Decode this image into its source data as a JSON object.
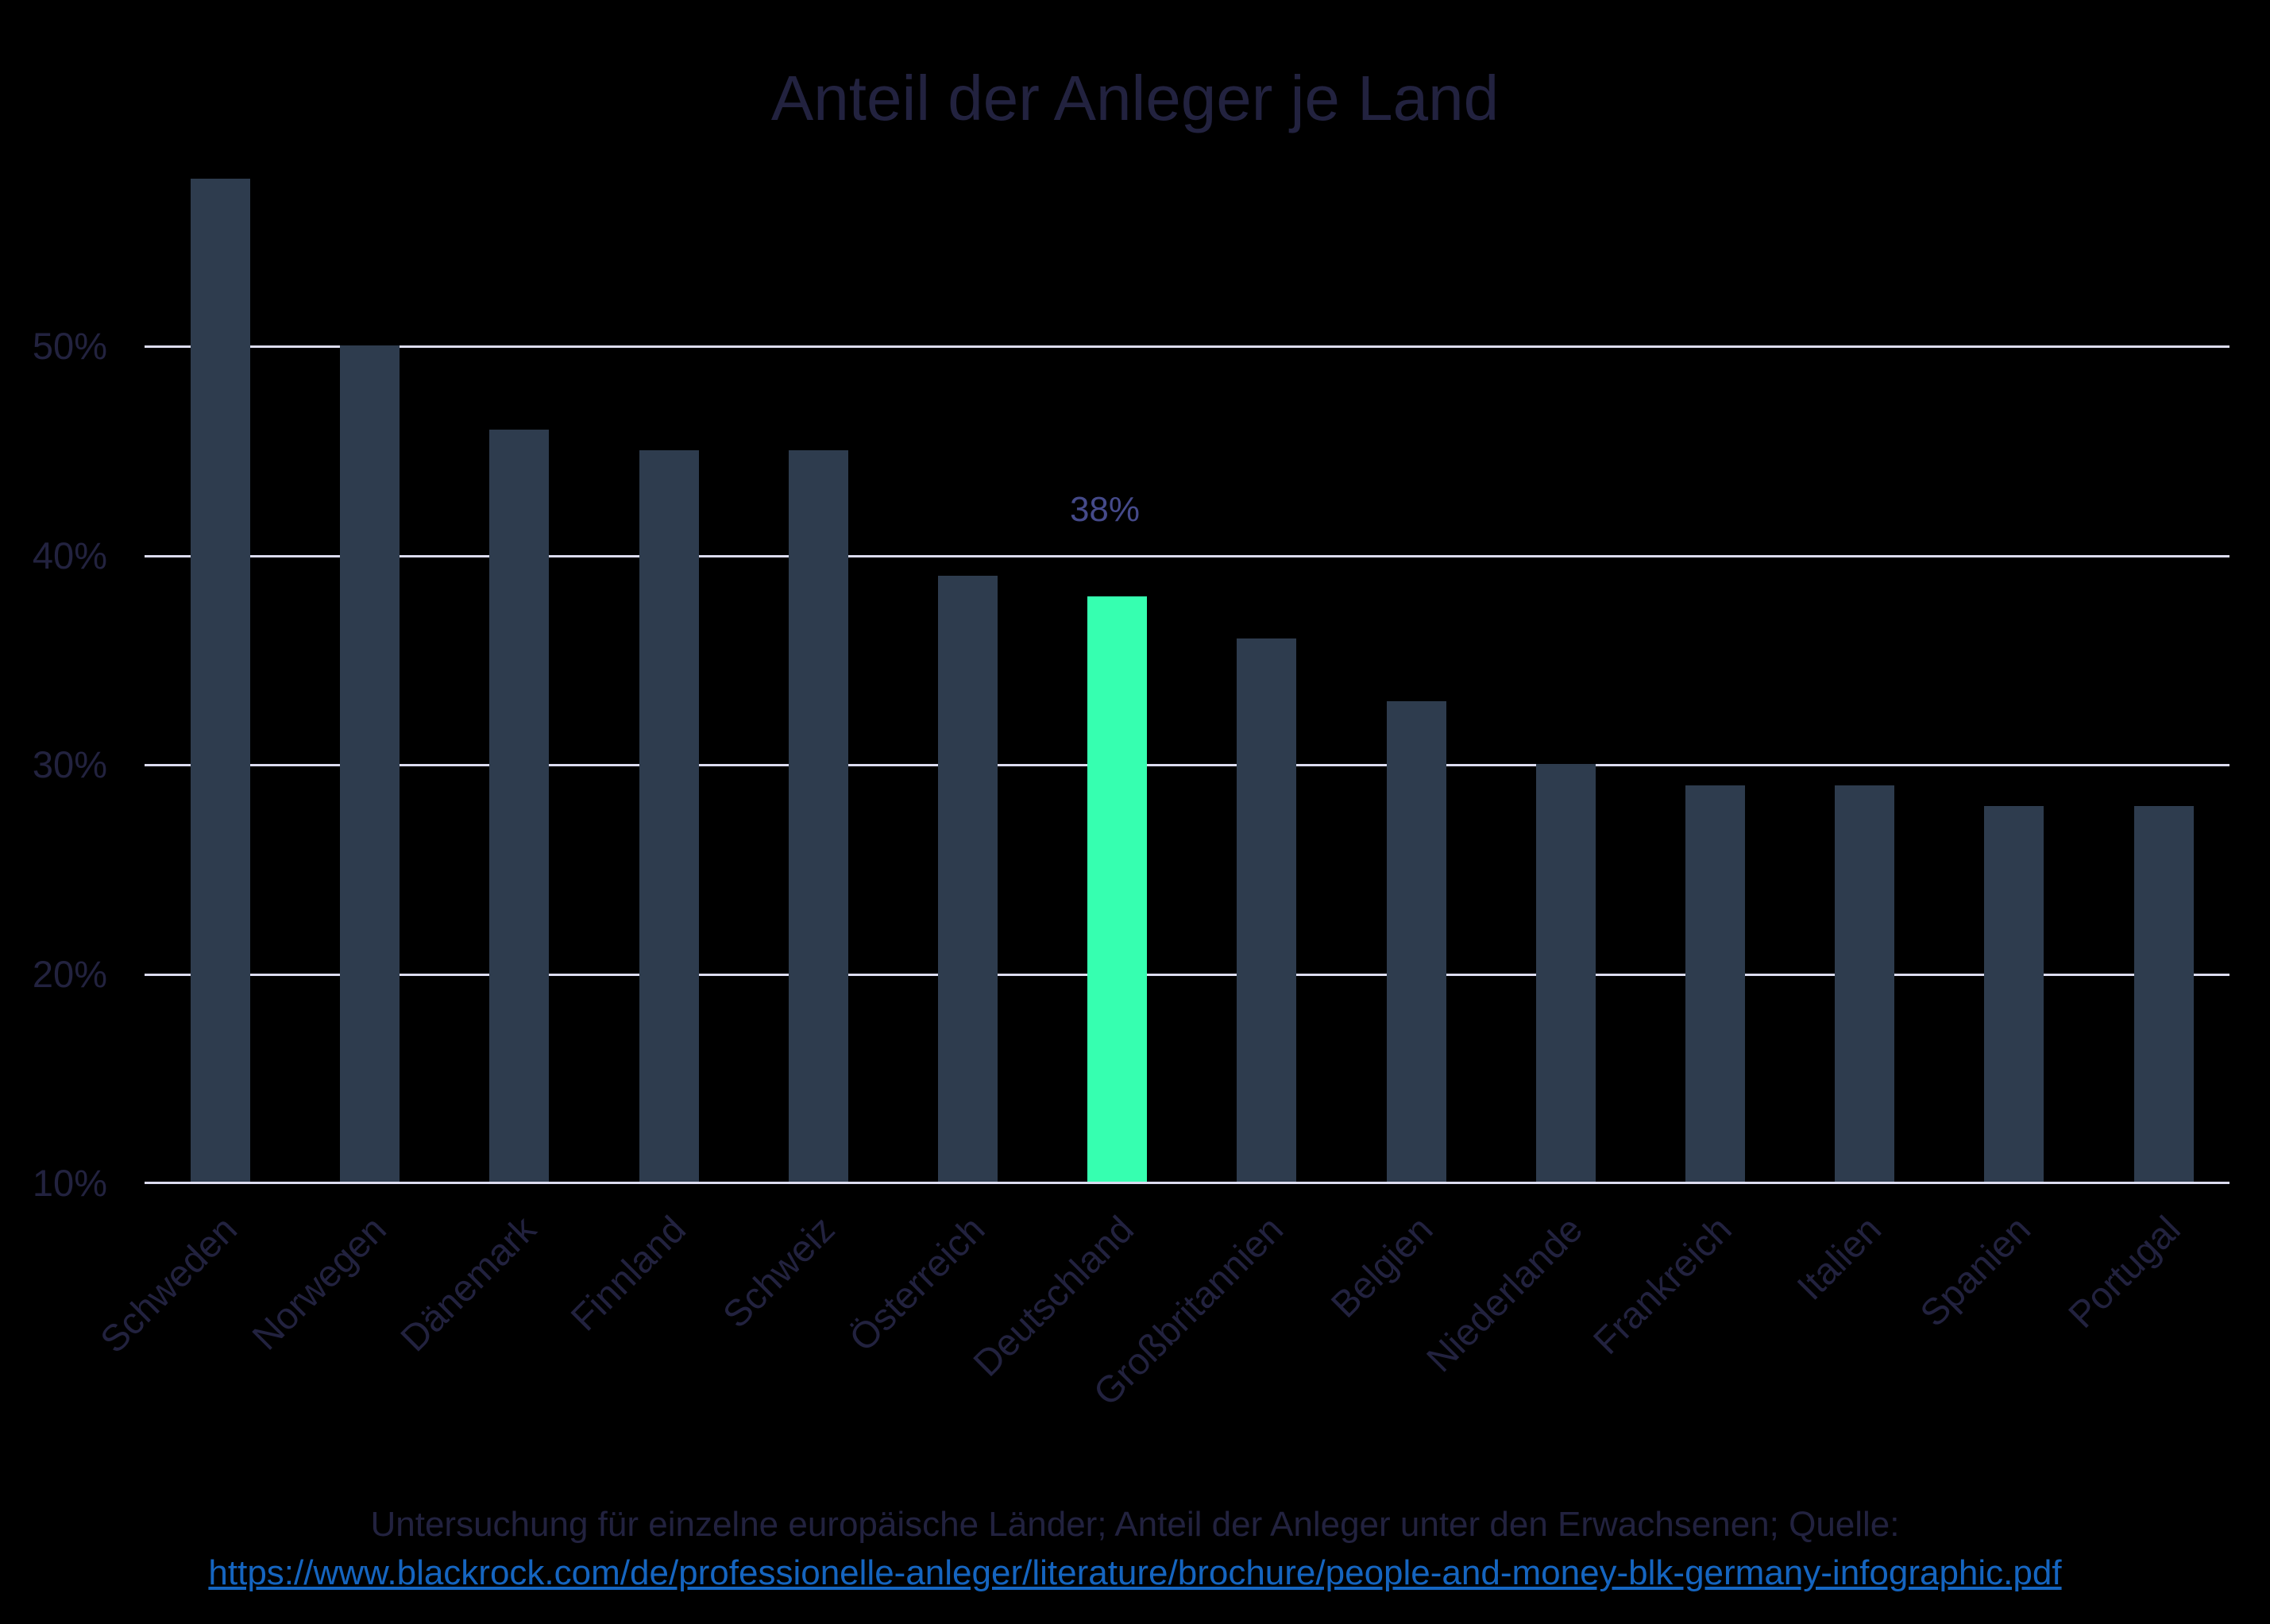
{
  "title": "Anteil der Anleger je Land",
  "chart_data": {
    "type": "bar",
    "title": "Anteil der Anleger je Land",
    "xlabel": "",
    "ylabel": "",
    "categories": [
      "Schweden",
      "Norwegen",
      "Dänemark",
      "Finnland",
      "Schweiz",
      "Österreich",
      "Deutschland",
      "Großbritannien",
      "Belgien",
      "Niederlande",
      "Frankreich",
      "Italien",
      "Spanien",
      "Portugal"
    ],
    "values": [
      58,
      50,
      46,
      45,
      45,
      39,
      38,
      36,
      33,
      30,
      29,
      29,
      28,
      28
    ],
    "unit": "%",
    "ylim": [
      10,
      60
    ],
    "yticks": [
      "10%",
      "20%",
      "30%",
      "40%",
      "50%"
    ],
    "grid": true,
    "highlight": {
      "category": "Deutschland",
      "label": "38%",
      "color": "#36ffb0"
    },
    "bar_color": "#2e3c4e",
    "legend": null
  },
  "y_axis": {
    "ticks": [
      "50%",
      "40%",
      "30%",
      "20%",
      "10%"
    ]
  },
  "x_axis": {
    "labels": [
      "Schweden",
      "Norwegen",
      "Dänemark",
      "Finnland",
      "Schweiz",
      "Österreich",
      "Deutschland",
      "Großbritannien",
      "Belgien",
      "Niederlande",
      "Frankreich",
      "Italien",
      "Spanien",
      "Portugal"
    ]
  },
  "annotation": "38%",
  "footer": {
    "note": "Untersuchung für einzelne europäische Länder; Anteil der Anleger unter den Erwachsenen; Quelle:",
    "link": "https://www.blackrock.com/de/professionelle-anleger/literature/brochure/people-and-money-blk-germany-infographic.pdf"
  },
  "colors": {
    "bar": "#2e3c4e",
    "highlight": "#36ffb0",
    "grid": "#dcdcf0",
    "text": "#22223f",
    "link": "#1565c0",
    "background": "#000000"
  }
}
